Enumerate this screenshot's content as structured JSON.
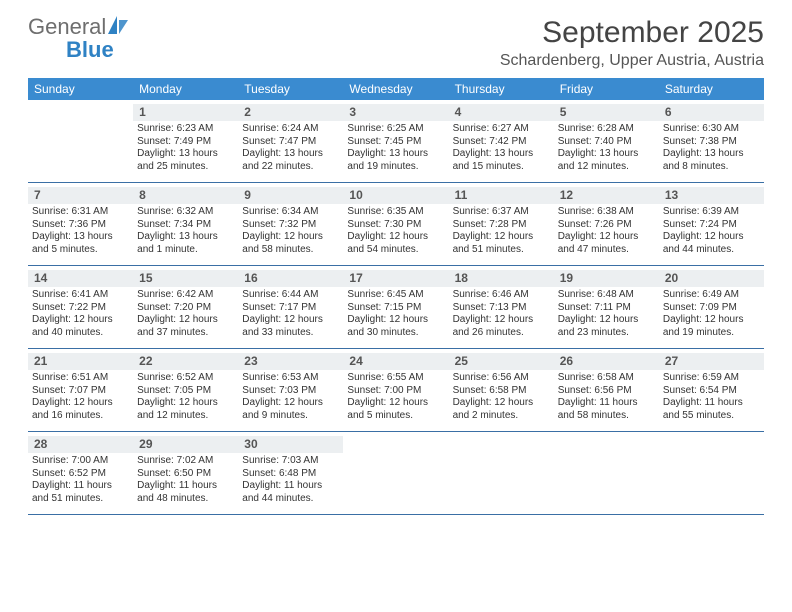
{
  "brand": {
    "name1": "General",
    "name2": "Blue",
    "accent": "#2f82c4"
  },
  "title": "September 2025",
  "location": "Schardenberg, Upper Austria, Austria",
  "colors": {
    "header_bar": "#3a8bd0",
    "daynum_band": "#eceff1",
    "rule": "#3a6fa5"
  },
  "dow": [
    "Sunday",
    "Monday",
    "Tuesday",
    "Wednesday",
    "Thursday",
    "Friday",
    "Saturday"
  ],
  "weeks": [
    [
      {
        "n": "",
        "sr": "",
        "ss": "",
        "dl": ""
      },
      {
        "n": "1",
        "sr": "Sunrise: 6:23 AM",
        "ss": "Sunset: 7:49 PM",
        "dl": "Daylight: 13 hours and 25 minutes."
      },
      {
        "n": "2",
        "sr": "Sunrise: 6:24 AM",
        "ss": "Sunset: 7:47 PM",
        "dl": "Daylight: 13 hours and 22 minutes."
      },
      {
        "n": "3",
        "sr": "Sunrise: 6:25 AM",
        "ss": "Sunset: 7:45 PM",
        "dl": "Daylight: 13 hours and 19 minutes."
      },
      {
        "n": "4",
        "sr": "Sunrise: 6:27 AM",
        "ss": "Sunset: 7:42 PM",
        "dl": "Daylight: 13 hours and 15 minutes."
      },
      {
        "n": "5",
        "sr": "Sunrise: 6:28 AM",
        "ss": "Sunset: 7:40 PM",
        "dl": "Daylight: 13 hours and 12 minutes."
      },
      {
        "n": "6",
        "sr": "Sunrise: 6:30 AM",
        "ss": "Sunset: 7:38 PM",
        "dl": "Daylight: 13 hours and 8 minutes."
      }
    ],
    [
      {
        "n": "7",
        "sr": "Sunrise: 6:31 AM",
        "ss": "Sunset: 7:36 PM",
        "dl": "Daylight: 13 hours and 5 minutes."
      },
      {
        "n": "8",
        "sr": "Sunrise: 6:32 AM",
        "ss": "Sunset: 7:34 PM",
        "dl": "Daylight: 13 hours and 1 minute."
      },
      {
        "n": "9",
        "sr": "Sunrise: 6:34 AM",
        "ss": "Sunset: 7:32 PM",
        "dl": "Daylight: 12 hours and 58 minutes."
      },
      {
        "n": "10",
        "sr": "Sunrise: 6:35 AM",
        "ss": "Sunset: 7:30 PM",
        "dl": "Daylight: 12 hours and 54 minutes."
      },
      {
        "n": "11",
        "sr": "Sunrise: 6:37 AM",
        "ss": "Sunset: 7:28 PM",
        "dl": "Daylight: 12 hours and 51 minutes."
      },
      {
        "n": "12",
        "sr": "Sunrise: 6:38 AM",
        "ss": "Sunset: 7:26 PM",
        "dl": "Daylight: 12 hours and 47 minutes."
      },
      {
        "n": "13",
        "sr": "Sunrise: 6:39 AM",
        "ss": "Sunset: 7:24 PM",
        "dl": "Daylight: 12 hours and 44 minutes."
      }
    ],
    [
      {
        "n": "14",
        "sr": "Sunrise: 6:41 AM",
        "ss": "Sunset: 7:22 PM",
        "dl": "Daylight: 12 hours and 40 minutes."
      },
      {
        "n": "15",
        "sr": "Sunrise: 6:42 AM",
        "ss": "Sunset: 7:20 PM",
        "dl": "Daylight: 12 hours and 37 minutes."
      },
      {
        "n": "16",
        "sr": "Sunrise: 6:44 AM",
        "ss": "Sunset: 7:17 PM",
        "dl": "Daylight: 12 hours and 33 minutes."
      },
      {
        "n": "17",
        "sr": "Sunrise: 6:45 AM",
        "ss": "Sunset: 7:15 PM",
        "dl": "Daylight: 12 hours and 30 minutes."
      },
      {
        "n": "18",
        "sr": "Sunrise: 6:46 AM",
        "ss": "Sunset: 7:13 PM",
        "dl": "Daylight: 12 hours and 26 minutes."
      },
      {
        "n": "19",
        "sr": "Sunrise: 6:48 AM",
        "ss": "Sunset: 7:11 PM",
        "dl": "Daylight: 12 hours and 23 minutes."
      },
      {
        "n": "20",
        "sr": "Sunrise: 6:49 AM",
        "ss": "Sunset: 7:09 PM",
        "dl": "Daylight: 12 hours and 19 minutes."
      }
    ],
    [
      {
        "n": "21",
        "sr": "Sunrise: 6:51 AM",
        "ss": "Sunset: 7:07 PM",
        "dl": "Daylight: 12 hours and 16 minutes."
      },
      {
        "n": "22",
        "sr": "Sunrise: 6:52 AM",
        "ss": "Sunset: 7:05 PM",
        "dl": "Daylight: 12 hours and 12 minutes."
      },
      {
        "n": "23",
        "sr": "Sunrise: 6:53 AM",
        "ss": "Sunset: 7:03 PM",
        "dl": "Daylight: 12 hours and 9 minutes."
      },
      {
        "n": "24",
        "sr": "Sunrise: 6:55 AM",
        "ss": "Sunset: 7:00 PM",
        "dl": "Daylight: 12 hours and 5 minutes."
      },
      {
        "n": "25",
        "sr": "Sunrise: 6:56 AM",
        "ss": "Sunset: 6:58 PM",
        "dl": "Daylight: 12 hours and 2 minutes."
      },
      {
        "n": "26",
        "sr": "Sunrise: 6:58 AM",
        "ss": "Sunset: 6:56 PM",
        "dl": "Daylight: 11 hours and 58 minutes."
      },
      {
        "n": "27",
        "sr": "Sunrise: 6:59 AM",
        "ss": "Sunset: 6:54 PM",
        "dl": "Daylight: 11 hours and 55 minutes."
      }
    ],
    [
      {
        "n": "28",
        "sr": "Sunrise: 7:00 AM",
        "ss": "Sunset: 6:52 PM",
        "dl": "Daylight: 11 hours and 51 minutes."
      },
      {
        "n": "29",
        "sr": "Sunrise: 7:02 AM",
        "ss": "Sunset: 6:50 PM",
        "dl": "Daylight: 11 hours and 48 minutes."
      },
      {
        "n": "30",
        "sr": "Sunrise: 7:03 AM",
        "ss": "Sunset: 6:48 PM",
        "dl": "Daylight: 11 hours and 44 minutes."
      },
      {
        "n": "",
        "sr": "",
        "ss": "",
        "dl": ""
      },
      {
        "n": "",
        "sr": "",
        "ss": "",
        "dl": ""
      },
      {
        "n": "",
        "sr": "",
        "ss": "",
        "dl": ""
      },
      {
        "n": "",
        "sr": "",
        "ss": "",
        "dl": ""
      }
    ]
  ]
}
